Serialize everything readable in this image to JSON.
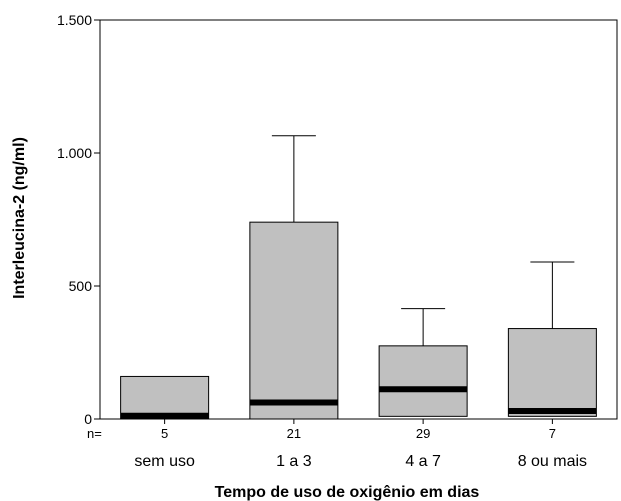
{
  "chart_data": {
    "type": "boxplot",
    "title": "",
    "xlabel": "Tempo de uso de oxigênio em dias",
    "ylabel": "Interleucina-2 (ng/ml)",
    "ylim": [
      0,
      1500
    ],
    "yticks": [
      0,
      500,
      1000,
      1500
    ],
    "ytick_labels": [
      "0",
      "500",
      "1.000",
      "1.500"
    ],
    "n_label": "n=",
    "categories": [
      "sem uso",
      "1 a 3",
      "4 a 7",
      "8 ou mais"
    ],
    "n": [
      "5",
      "21",
      "29",
      "7"
    ],
    "boxes": [
      {
        "q1": 0,
        "median": 12,
        "q3": 160,
        "whisker_low": 0,
        "whisker_high": 160
      },
      {
        "q1": 0,
        "median": 62,
        "q3": 740,
        "whisker_low": 0,
        "whisker_high": 1065
      },
      {
        "q1": 10,
        "median": 112,
        "q3": 275,
        "whisker_low": 10,
        "whisker_high": 415
      },
      {
        "q1": 10,
        "median": 30,
        "q3": 340,
        "whisker_low": 10,
        "whisker_high": 590
      }
    ],
    "box_color": "#c0c0c0",
    "median_color": "#000000",
    "grid": false
  }
}
